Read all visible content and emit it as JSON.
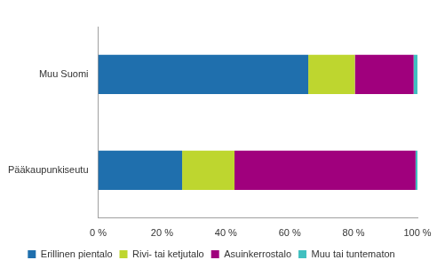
{
  "chart_data": {
    "type": "bar",
    "orientation": "horizontal",
    "stacked": true,
    "grid": false,
    "legend": "bottom",
    "categories": [
      "Muu Suomi",
      "Pääkaupunkiseutu"
    ],
    "series": [
      {
        "name": "Erillinen pientalo",
        "color": "#1f6fad",
        "values": [
          65.8,
          26.3
        ]
      },
      {
        "name": "Rivi- tai ketjutalo",
        "color": "#bed62f",
        "values": [
          14.6,
          16.4
        ]
      },
      {
        "name": "Asuinkerrostalo",
        "color": "#a0007d",
        "values": [
          18.4,
          56.7
        ]
      },
      {
        "name": "Muu tai tuntematon",
        "color": "#41c0c0",
        "values": [
          1.2,
          0.6
        ]
      }
    ],
    "xlim": [
      0,
      100
    ],
    "xticks": [
      {
        "value": 0,
        "label": "0 %"
      },
      {
        "value": 20,
        "label": "20 %"
      },
      {
        "value": 40,
        "label": "40 %"
      },
      {
        "value": 60,
        "label": "60 %"
      },
      {
        "value": 80,
        "label": "80 %"
      },
      {
        "value": 100,
        "label": "100 %"
      }
    ]
  }
}
